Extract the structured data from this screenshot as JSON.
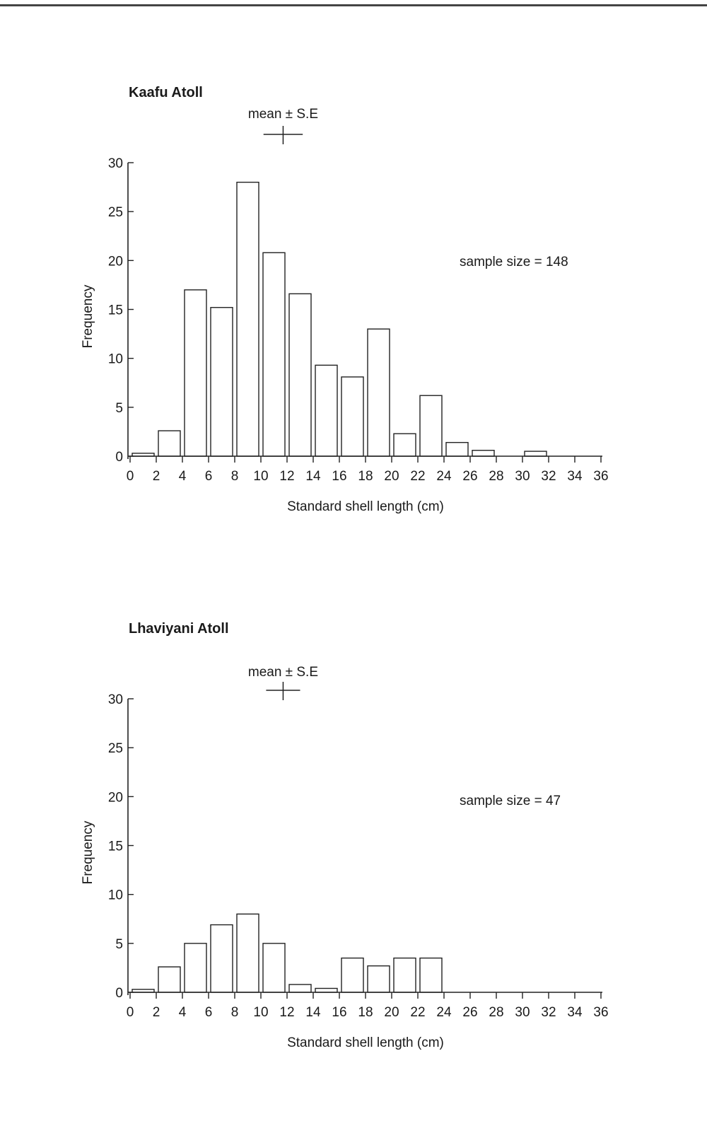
{
  "chart_data": [
    {
      "type": "bar",
      "title": "Kaafu Atoll",
      "xlabel": "Standard shell length (cm)",
      "ylabel": "Frequency",
      "ylim": [
        0,
        30
      ],
      "xlim": [
        0,
        36
      ],
      "x_ticks": [
        "0",
        "2",
        "4",
        "6",
        "8",
        "10",
        "12",
        "14",
        "16",
        "18",
        "20",
        "22",
        "24",
        "26",
        "28",
        "30",
        "32",
        "34",
        "36"
      ],
      "y_ticks": [
        "0",
        "5",
        "10",
        "15",
        "20",
        "25",
        "30"
      ],
      "bins": [
        [
          0,
          2
        ],
        [
          2,
          4
        ],
        [
          4,
          6
        ],
        [
          6,
          8
        ],
        [
          8,
          10
        ],
        [
          10,
          12
        ],
        [
          12,
          14
        ],
        [
          14,
          16
        ],
        [
          16,
          18
        ],
        [
          18,
          20
        ],
        [
          20,
          22
        ],
        [
          22,
          24
        ],
        [
          24,
          26
        ],
        [
          26,
          28
        ],
        [
          28,
          30
        ],
        [
          30,
          32
        ],
        [
          32,
          34
        ],
        [
          34,
          36
        ]
      ],
      "values": [
        0.3,
        2.6,
        17,
        15.2,
        28,
        20.8,
        16.6,
        9.3,
        8.1,
        13,
        2.3,
        6.2,
        1.4,
        0.6,
        0,
        0.5,
        0,
        0
      ],
      "annotation": "sample size = 148",
      "mean_se_label": "mean ± S.E",
      "mean": 11.7,
      "se": 1.5,
      "grid": false,
      "legend": "none"
    },
    {
      "type": "bar",
      "title": "Lhaviyani Atoll",
      "xlabel": "Standard shell length (cm)",
      "ylabel": "Frequency",
      "ylim": [
        0,
        30
      ],
      "xlim": [
        0,
        36
      ],
      "x_ticks": [
        "0",
        "2",
        "4",
        "6",
        "8",
        "10",
        "12",
        "14",
        "16",
        "18",
        "20",
        "22",
        "24",
        "26",
        "28",
        "30",
        "32",
        "34",
        "36"
      ],
      "y_ticks": [
        "0",
        "5",
        "10",
        "15",
        "20",
        "25",
        "30"
      ],
      "bins": [
        [
          0,
          2
        ],
        [
          2,
          4
        ],
        [
          4,
          6
        ],
        [
          6,
          8
        ],
        [
          8,
          10
        ],
        [
          10,
          12
        ],
        [
          12,
          14
        ],
        [
          14,
          16
        ],
        [
          16,
          18
        ],
        [
          18,
          20
        ],
        [
          20,
          22
        ],
        [
          22,
          24
        ],
        [
          24,
          26
        ],
        [
          26,
          28
        ],
        [
          28,
          30
        ],
        [
          30,
          32
        ],
        [
          32,
          34
        ],
        [
          34,
          36
        ]
      ],
      "values": [
        0.3,
        2.6,
        5,
        6.9,
        8,
        5,
        0.8,
        0.4,
        3.5,
        2.7,
        3.5,
        3.5,
        0,
        0,
        0,
        0,
        0,
        0
      ],
      "annotation": "sample size = 47",
      "mean_se_label": "mean ± S.E",
      "mean": 11.7,
      "se": 1.3,
      "grid": false,
      "legend": "none"
    }
  ]
}
